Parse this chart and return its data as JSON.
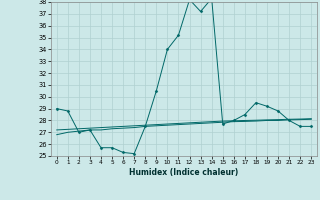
{
  "title": "",
  "xlabel": "Humidex (Indice chaleur)",
  "ylabel": "",
  "bg_color": "#cce8e8",
  "grid_color": "#b0d0d0",
  "line_color": "#006868",
  "ylim": [
    25,
    38
  ],
  "xlim": [
    -0.5,
    23.5
  ],
  "yticks": [
    25,
    26,
    27,
    28,
    29,
    30,
    31,
    32,
    33,
    34,
    35,
    36,
    37,
    38
  ],
  "xticks": [
    0,
    1,
    2,
    3,
    4,
    5,
    6,
    7,
    8,
    9,
    10,
    11,
    12,
    13,
    14,
    15,
    16,
    17,
    18,
    19,
    20,
    21,
    22,
    23
  ],
  "series1_x": [
    0,
    1,
    2,
    3,
    4,
    5,
    6,
    7,
    8,
    9,
    10,
    11,
    12,
    13,
    14,
    15,
    16,
    17,
    18,
    19,
    20,
    21,
    22,
    23
  ],
  "series1_y": [
    29.0,
    28.8,
    27.0,
    27.2,
    25.7,
    25.7,
    25.3,
    25.2,
    27.5,
    30.5,
    34.0,
    35.2,
    38.2,
    37.2,
    38.3,
    27.7,
    28.0,
    28.5,
    29.5,
    29.2,
    28.8,
    28.0,
    27.5,
    27.5
  ],
  "series2_x": [
    0,
    1,
    2,
    3,
    4,
    5,
    6,
    7,
    8,
    9,
    10,
    11,
    12,
    13,
    14,
    15,
    16,
    17,
    18,
    19,
    20,
    21,
    22,
    23
  ],
  "series2_y": [
    26.8,
    27.0,
    27.1,
    27.2,
    27.2,
    27.3,
    27.35,
    27.4,
    27.5,
    27.55,
    27.6,
    27.65,
    27.7,
    27.75,
    27.8,
    27.85,
    27.9,
    27.92,
    27.95,
    28.0,
    28.0,
    28.05,
    28.07,
    28.1
  ],
  "series3_x": [
    0,
    1,
    2,
    3,
    4,
    5,
    6,
    7,
    8,
    9,
    10,
    11,
    12,
    13,
    14,
    15,
    16,
    17,
    18,
    19,
    20,
    21,
    22,
    23
  ],
  "series3_y": [
    27.2,
    27.25,
    27.3,
    27.35,
    27.4,
    27.45,
    27.5,
    27.55,
    27.6,
    27.65,
    27.7,
    27.75,
    27.8,
    27.85,
    27.9,
    27.95,
    27.97,
    28.0,
    28.02,
    28.05,
    28.07,
    28.1,
    28.12,
    28.15
  ]
}
